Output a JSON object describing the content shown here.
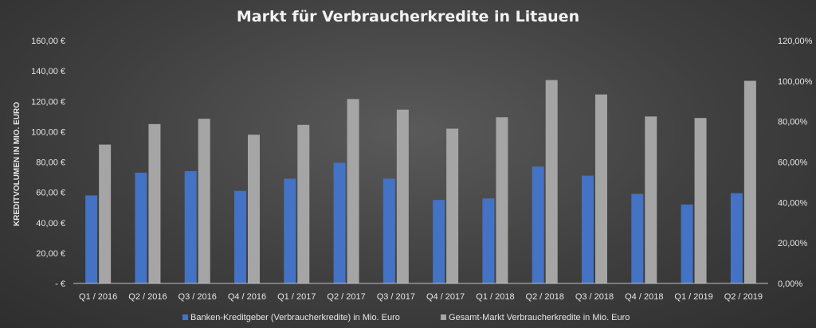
{
  "chart_data": {
    "type": "bar",
    "title": "Markt für Verbraucherkredite in Litauen",
    "ylabel": "KREDITVOLUMEN IN MIO. EURO",
    "categories": [
      "Q1 / 2016",
      "Q2 / 2016",
      "Q3 / 2016",
      "Q4 / 2016",
      "Q1 / 2017",
      "Q2 / 2017",
      "Q3 / 2017",
      "Q4 / 2017",
      "Q1 / 2018",
      "Q2 / 2018",
      "Q3 / 2018",
      "Q4 / 2018",
      "Q1 / 2019",
      "Q2 / 2019"
    ],
    "series": [
      {
        "name": "Banken-Kreditgeber (Verbraucherkredite) in Mio. Euro",
        "color": "#4472c4",
        "values": [
          58,
          73,
          74,
          61,
          69,
          79.5,
          69,
          55,
          56,
          77,
          71,
          59,
          52,
          59.5
        ]
      },
      {
        "name": "Gesamt-Markt Verbraucherkredite in Mio. Euro",
        "color": "#a5a5a5",
        "values": [
          91.5,
          105,
          108.5,
          98,
          104.5,
          121.5,
          114.5,
          102,
          109.5,
          134,
          124.5,
          110,
          109,
          133.5
        ]
      }
    ],
    "ylim": [
      0,
      160
    ],
    "y_ticks": [
      "-   €",
      "20,00 €",
      "40,00 €",
      "60,00 €",
      "80,00 €",
      "100,00 €",
      "120,00 €",
      "140,00 €",
      "160,00 €"
    ],
    "y2lim": [
      0,
      120
    ],
    "y2_ticks": [
      "0,00%",
      "20,00%",
      "40,00%",
      "60,00%",
      "80,00%",
      "100,00%",
      "120,00%"
    ],
    "grid": false,
    "legend_position": "bottom"
  }
}
